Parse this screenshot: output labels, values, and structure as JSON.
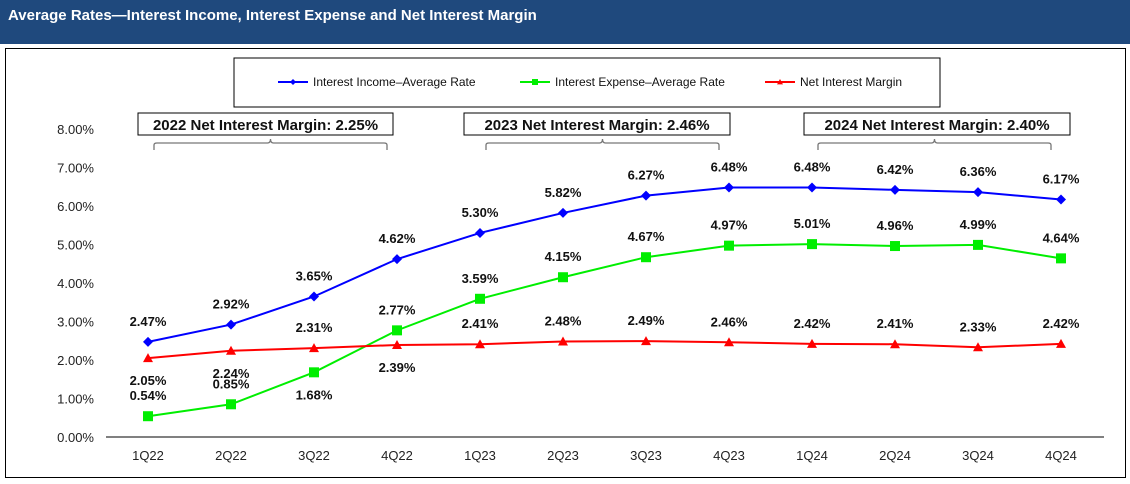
{
  "header": {
    "title": "Average Rates—Interest Income, Interest Expense and Net Interest Margin"
  },
  "colors": {
    "header_bg": "#1f497d",
    "income": "#0000ff",
    "expense": "#00ee00",
    "nim": "#ff0000"
  },
  "chart_data": {
    "type": "line",
    "title": "",
    "xlabel": "",
    "ylabel": "",
    "ylim": [
      0,
      8
    ],
    "yticks": [
      "0.00%",
      "1.00%",
      "2.00%",
      "3.00%",
      "4.00%",
      "5.00%",
      "6.00%",
      "7.00%",
      "8.00%"
    ],
    "grid": false,
    "legend": "top-center",
    "categories": [
      "1Q22",
      "2Q22",
      "3Q22",
      "4Q22",
      "1Q23",
      "2Q23",
      "3Q23",
      "4Q23",
      "1Q24",
      "2Q24",
      "3Q24",
      "4Q24"
    ],
    "series": [
      {
        "name": "Interest Income–Average Rate",
        "marker": "diamond",
        "color": "#0000ff",
        "values": [
          2.47,
          2.92,
          3.65,
          4.62,
          5.3,
          5.82,
          6.27,
          6.48,
          6.48,
          6.42,
          6.36,
          6.17
        ]
      },
      {
        "name": "Interest Expense–Average Rate",
        "marker": "square",
        "color": "#00ee00",
        "values": [
          0.54,
          0.85,
          1.68,
          2.77,
          3.59,
          4.15,
          4.67,
          4.97,
          5.01,
          4.96,
          4.99,
          4.64
        ]
      },
      {
        "name": "Net Interest Margin",
        "marker": "triangle",
        "color": "#ff0000",
        "values": [
          2.05,
          2.24,
          2.31,
          2.39,
          2.41,
          2.48,
          2.49,
          2.46,
          2.42,
          2.41,
          2.33,
          2.42
        ]
      }
    ],
    "annotations": [
      {
        "text": "2022 Net Interest Margin:  2.25%",
        "from": "1Q22",
        "to": "4Q22"
      },
      {
        "text": "2023 Net Interest Margin:  2.46%",
        "from": "1Q23",
        "to": "4Q23"
      },
      {
        "text": "2024 Net Interest Margin:  2.40%",
        "from": "1Q24",
        "to": "4Q24"
      }
    ]
  }
}
